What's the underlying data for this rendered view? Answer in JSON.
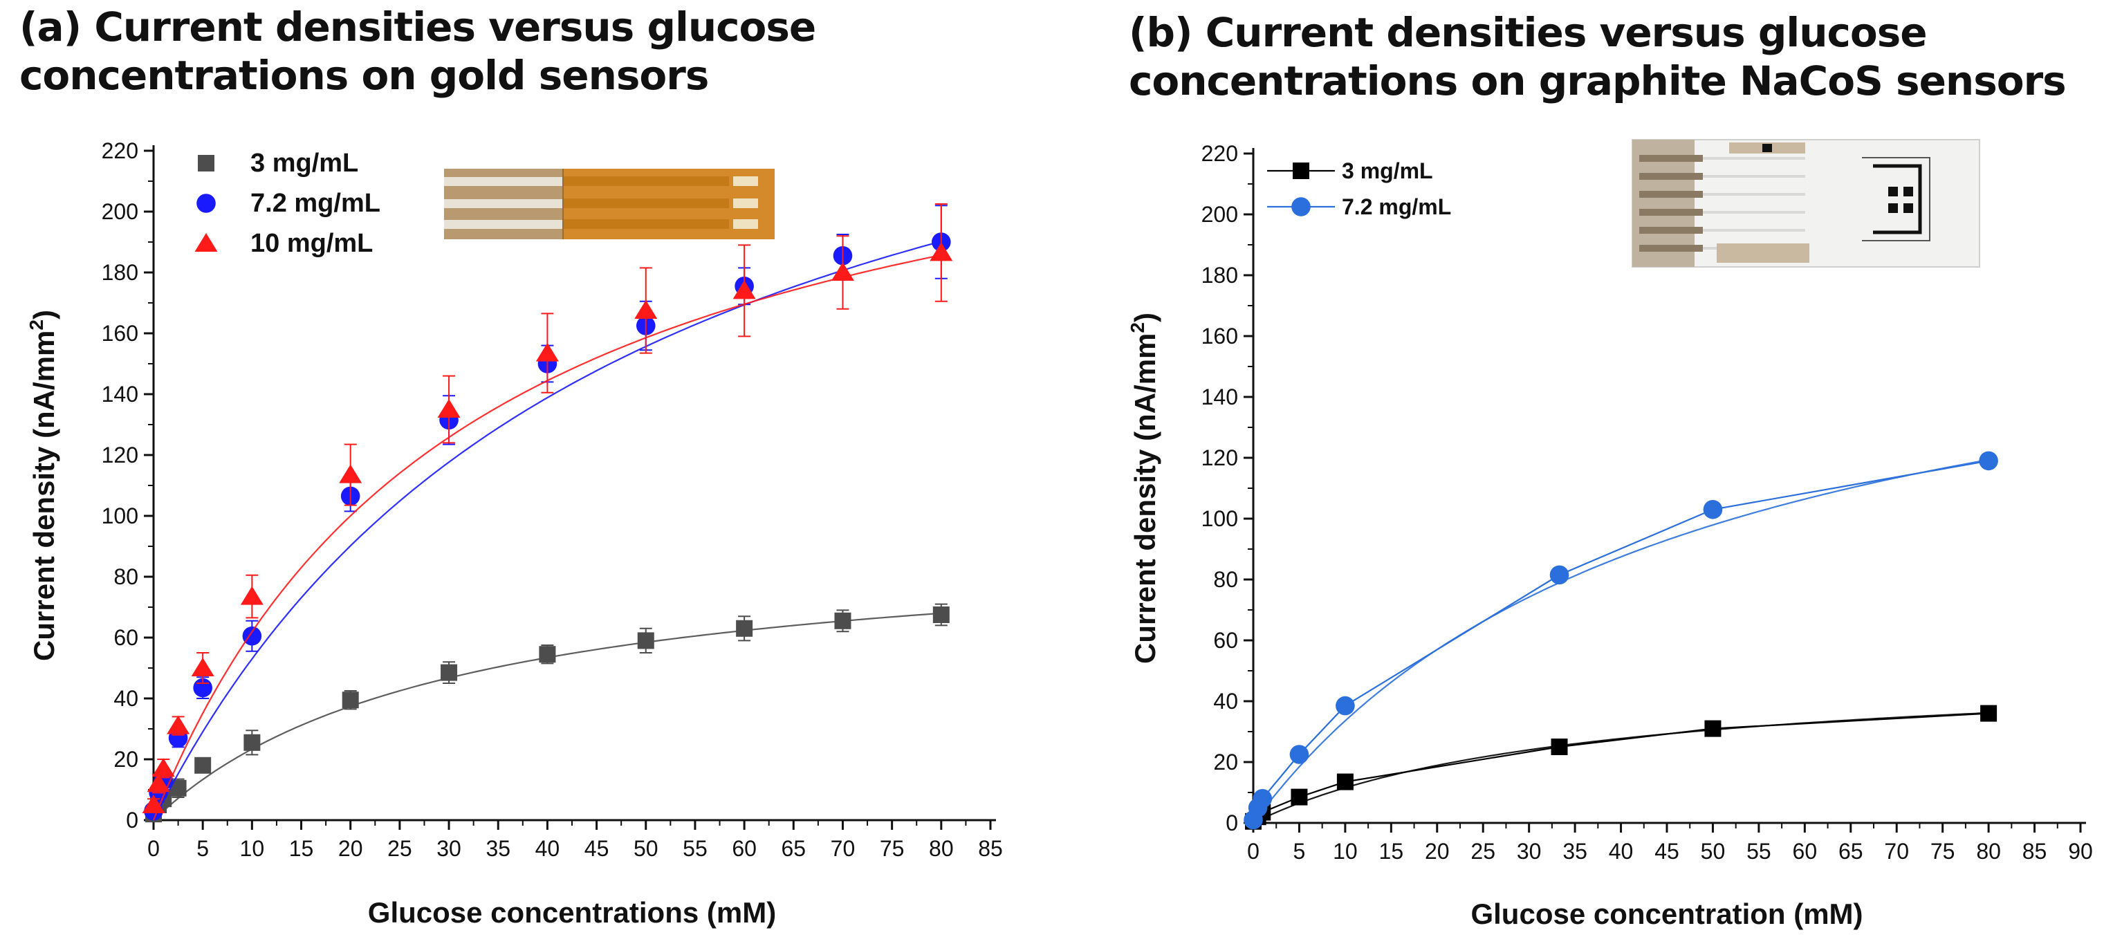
{
  "chart_data": [
    {
      "type": "scatter",
      "panel": "a",
      "title_lines": [
        "(a) Current densities versus glucose",
        "concentrations on gold sensors"
      ],
      "xlabel": "Glucose concentrations (mM)",
      "ylabel": "Current density (nA/mm",
      "ylabel_sup": "2",
      "ylabel_close": ")",
      "xlim": [
        0,
        85
      ],
      "ylim": [
        0,
        220
      ],
      "xticks": [
        "0",
        "5",
        "10",
        "15",
        "20",
        "25",
        "30",
        "35",
        "40",
        "45",
        "50",
        "55",
        "60",
        "65",
        "70",
        "75",
        "80",
        "85"
      ],
      "yticks": [
        "0",
        "20",
        "40",
        "60",
        "80",
        "100",
        "120",
        "140",
        "160",
        "180",
        "200",
        "220"
      ],
      "x": [
        0,
        0.5,
        1,
        2.5,
        5,
        10,
        20,
        30,
        40,
        50,
        60,
        70,
        80
      ],
      "series": [
        {
          "name": "3  mg/mL",
          "color": "#4d4d4d",
          "marker": "square",
          "values": [
            2,
            5,
            7,
            10.5,
            18,
            25.5,
            39.5,
            48.5,
            54.5,
            59,
            63,
            65.5,
            67.5
          ],
          "errors": [
            1,
            2,
            2,
            3,
            2,
            4,
            3,
            3.5,
            3,
            4,
            4,
            3.5,
            3.5
          ],
          "fit_vmax": 93.5,
          "fit_km": 30
        },
        {
          "name": "7.2  mg/mL",
          "color": "#1a1aff",
          "marker": "circle",
          "values": [
            3,
            9,
            13,
            27,
            43.5,
            60.5,
            106.5,
            131.5,
            150,
            162.5,
            175.5,
            185.5,
            190
          ],
          "errors": [
            2,
            3,
            3,
            3,
            3.5,
            5,
            5,
            8,
            6,
            8,
            6,
            7,
            12
          ],
          "fit_vmax": 302,
          "fit_km": 47
        },
        {
          "name": "10  mg/mL",
          "color": "#ff1a1a",
          "marker": "triangle",
          "values": [
            5,
            12,
            17,
            31,
            50,
            73.5,
            113.5,
            135,
            153.5,
            167.5,
            174,
            180,
            186.5
          ],
          "errors": [
            2,
            3,
            3,
            3,
            5,
            7,
            10,
            11,
            13,
            14,
            15,
            12,
            16
          ],
          "fit_vmax": 260,
          "fit_km": 32
        }
      ],
      "legend_position": "top-left",
      "inset_image": "gold sensor photo (orange strip)"
    },
    {
      "type": "line",
      "panel": "b",
      "title_lines": [
        "(b) Current densities versus glucose",
        "concentrations on graphite NaCoS sensors"
      ],
      "xlabel": "Glucose concentration (mM)",
      "ylabel": "Current density (nA/mm",
      "ylabel_sup": "2",
      "ylabel_close": ")",
      "xlim": [
        0,
        90
      ],
      "ylim": [
        0,
        220
      ],
      "xticks": [
        "0",
        "5",
        "10",
        "15",
        "20",
        "25",
        "30",
        "35",
        "40",
        "45",
        "50",
        "55",
        "60",
        "65",
        "70",
        "75",
        "80",
        "85",
        "90"
      ],
      "yticks": [
        "0",
        "20",
        "40",
        "60",
        "80",
        "100",
        "120",
        "140",
        "160",
        "180",
        "200",
        "220"
      ],
      "x": [
        0,
        0.5,
        1,
        5,
        10,
        33.3,
        50,
        80
      ],
      "series": [
        {
          "name": "3  mg/mL",
          "color": "#000000",
          "marker": "square",
          "values": [
            0.5,
            2,
            3.5,
            8.5,
            13.5,
            25,
            31,
            36
          ],
          "fit_vmax": 52,
          "fit_km": 35
        },
        {
          "name": "7.2  mg/mL",
          "color": "#2a6fdb",
          "marker": "circle",
          "values": [
            1,
            5,
            8,
            22.5,
            38.5,
            81.5,
            103,
            119
          ],
          "fit_vmax": 188,
          "fit_km": 46
        }
      ],
      "legend_position": "top-left",
      "inset_image": "graphite NaCoS sensor photo (white strip)"
    }
  ]
}
